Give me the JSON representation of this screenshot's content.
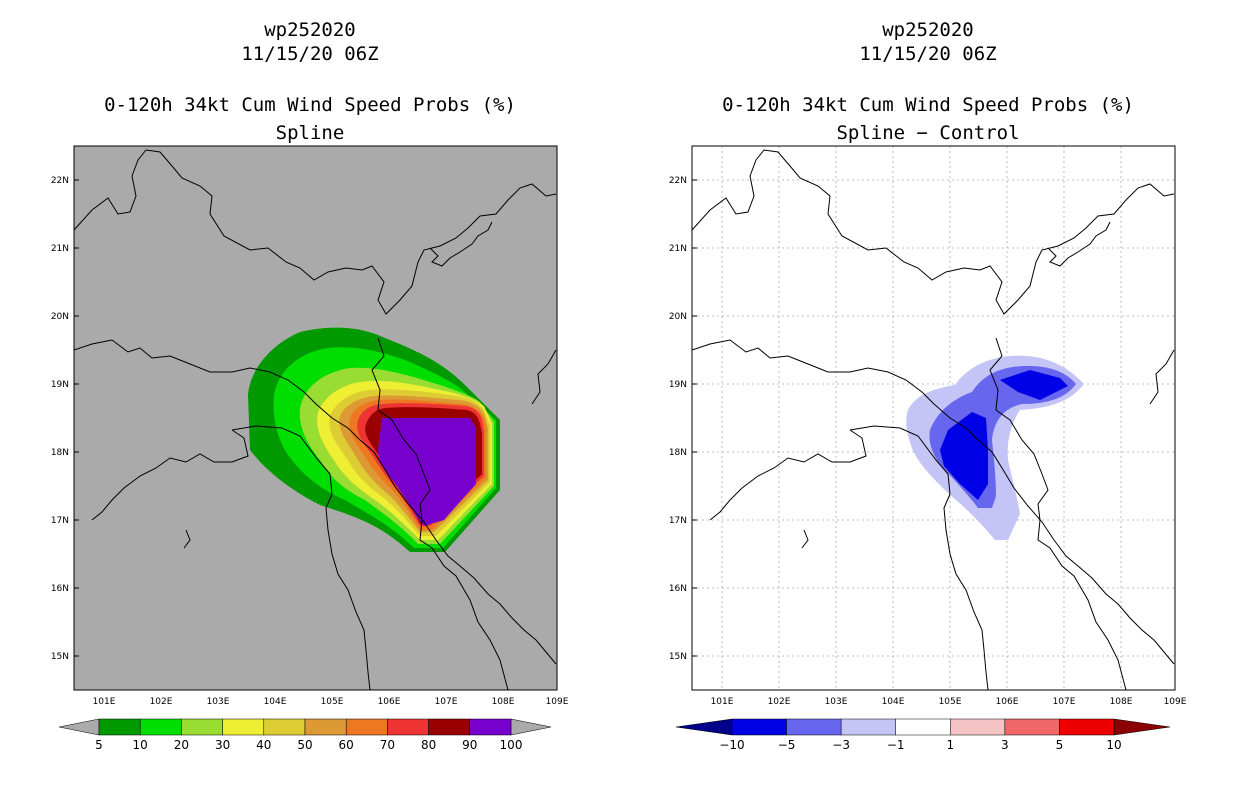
{
  "left_panel": {
    "storm_id": "wp252020",
    "datetime": "11/15/20 06Z",
    "product": "0-120h 34kt Cum Wind Speed Probs (%)",
    "method": "Spline",
    "lat_labels": [
      "22N",
      "21N",
      "20N",
      "19N",
      "18N",
      "17N",
      "16N",
      "15N"
    ],
    "lon_labels": [
      "101E",
      "102E",
      "103E",
      "104E",
      "105E",
      "106E",
      "107E",
      "108E",
      "109E"
    ],
    "colorbar": {
      "colors": [
        "#009900",
        "#00dd00",
        "#99dd33",
        "#eeee33",
        "#ddcc33",
        "#dd9933",
        "#ee7722",
        "#ee3333",
        "#990000",
        "#7700cc"
      ],
      "labels": [
        "5",
        "10",
        "20",
        "30",
        "40",
        "50",
        "60",
        "70",
        "80",
        "90",
        "100"
      ],
      "under_color": "#aaaaaa",
      "over_color": "#aaaaaa"
    },
    "background_color": "#aaaaaa"
  },
  "right_panel": {
    "storm_id": "wp252020",
    "datetime": "11/15/20 06Z",
    "product": "0-120h 34kt Cum Wind Speed Probs (%)",
    "method": "Spline − Control",
    "lat_labels": [
      "22N",
      "21N",
      "20N",
      "19N",
      "18N",
      "17N",
      "16N",
      "15N"
    ],
    "lon_labels": [
      "101E",
      "102E",
      "103E",
      "104E",
      "105E",
      "106E",
      "107E",
      "108E",
      "109E"
    ],
    "colorbar": {
      "colors": [
        "#0000e6",
        "#6666ee",
        "#c4c4f6",
        "#ffffff",
        "#f6c4c4",
        "#ee6666",
        "#ee0000"
      ],
      "labels": [
        "−10",
        "−5",
        "−3",
        "−1",
        "1",
        "3",
        "5",
        "10"
      ],
      "under_color": "#00008b",
      "over_color": "#8b0000"
    },
    "background_color": "#ffffff"
  }
}
